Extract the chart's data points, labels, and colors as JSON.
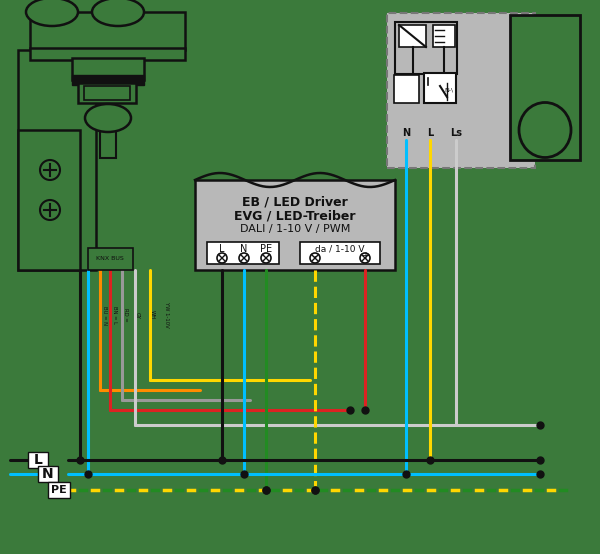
{
  "bg": "#3b7a3b",
  "bk": "#111111",
  "wh": "#ffffff",
  "or": "#FF8C00",
  "rd": "#DD2222",
  "gy": "#999999",
  "lgy": "#cccccc",
  "yw": "#FFD700",
  "gn": "#228B22",
  "bl": "#00BFFF",
  "dgy": "#b8b8b8",
  "drv_line1": "EB / LED Driver",
  "drv_line2": "EVG / LED-Treiber",
  "drv_line3": "DALI / 1-10 V / PWM",
  "yL": 460,
  "yN": 474,
  "yPE": 490
}
